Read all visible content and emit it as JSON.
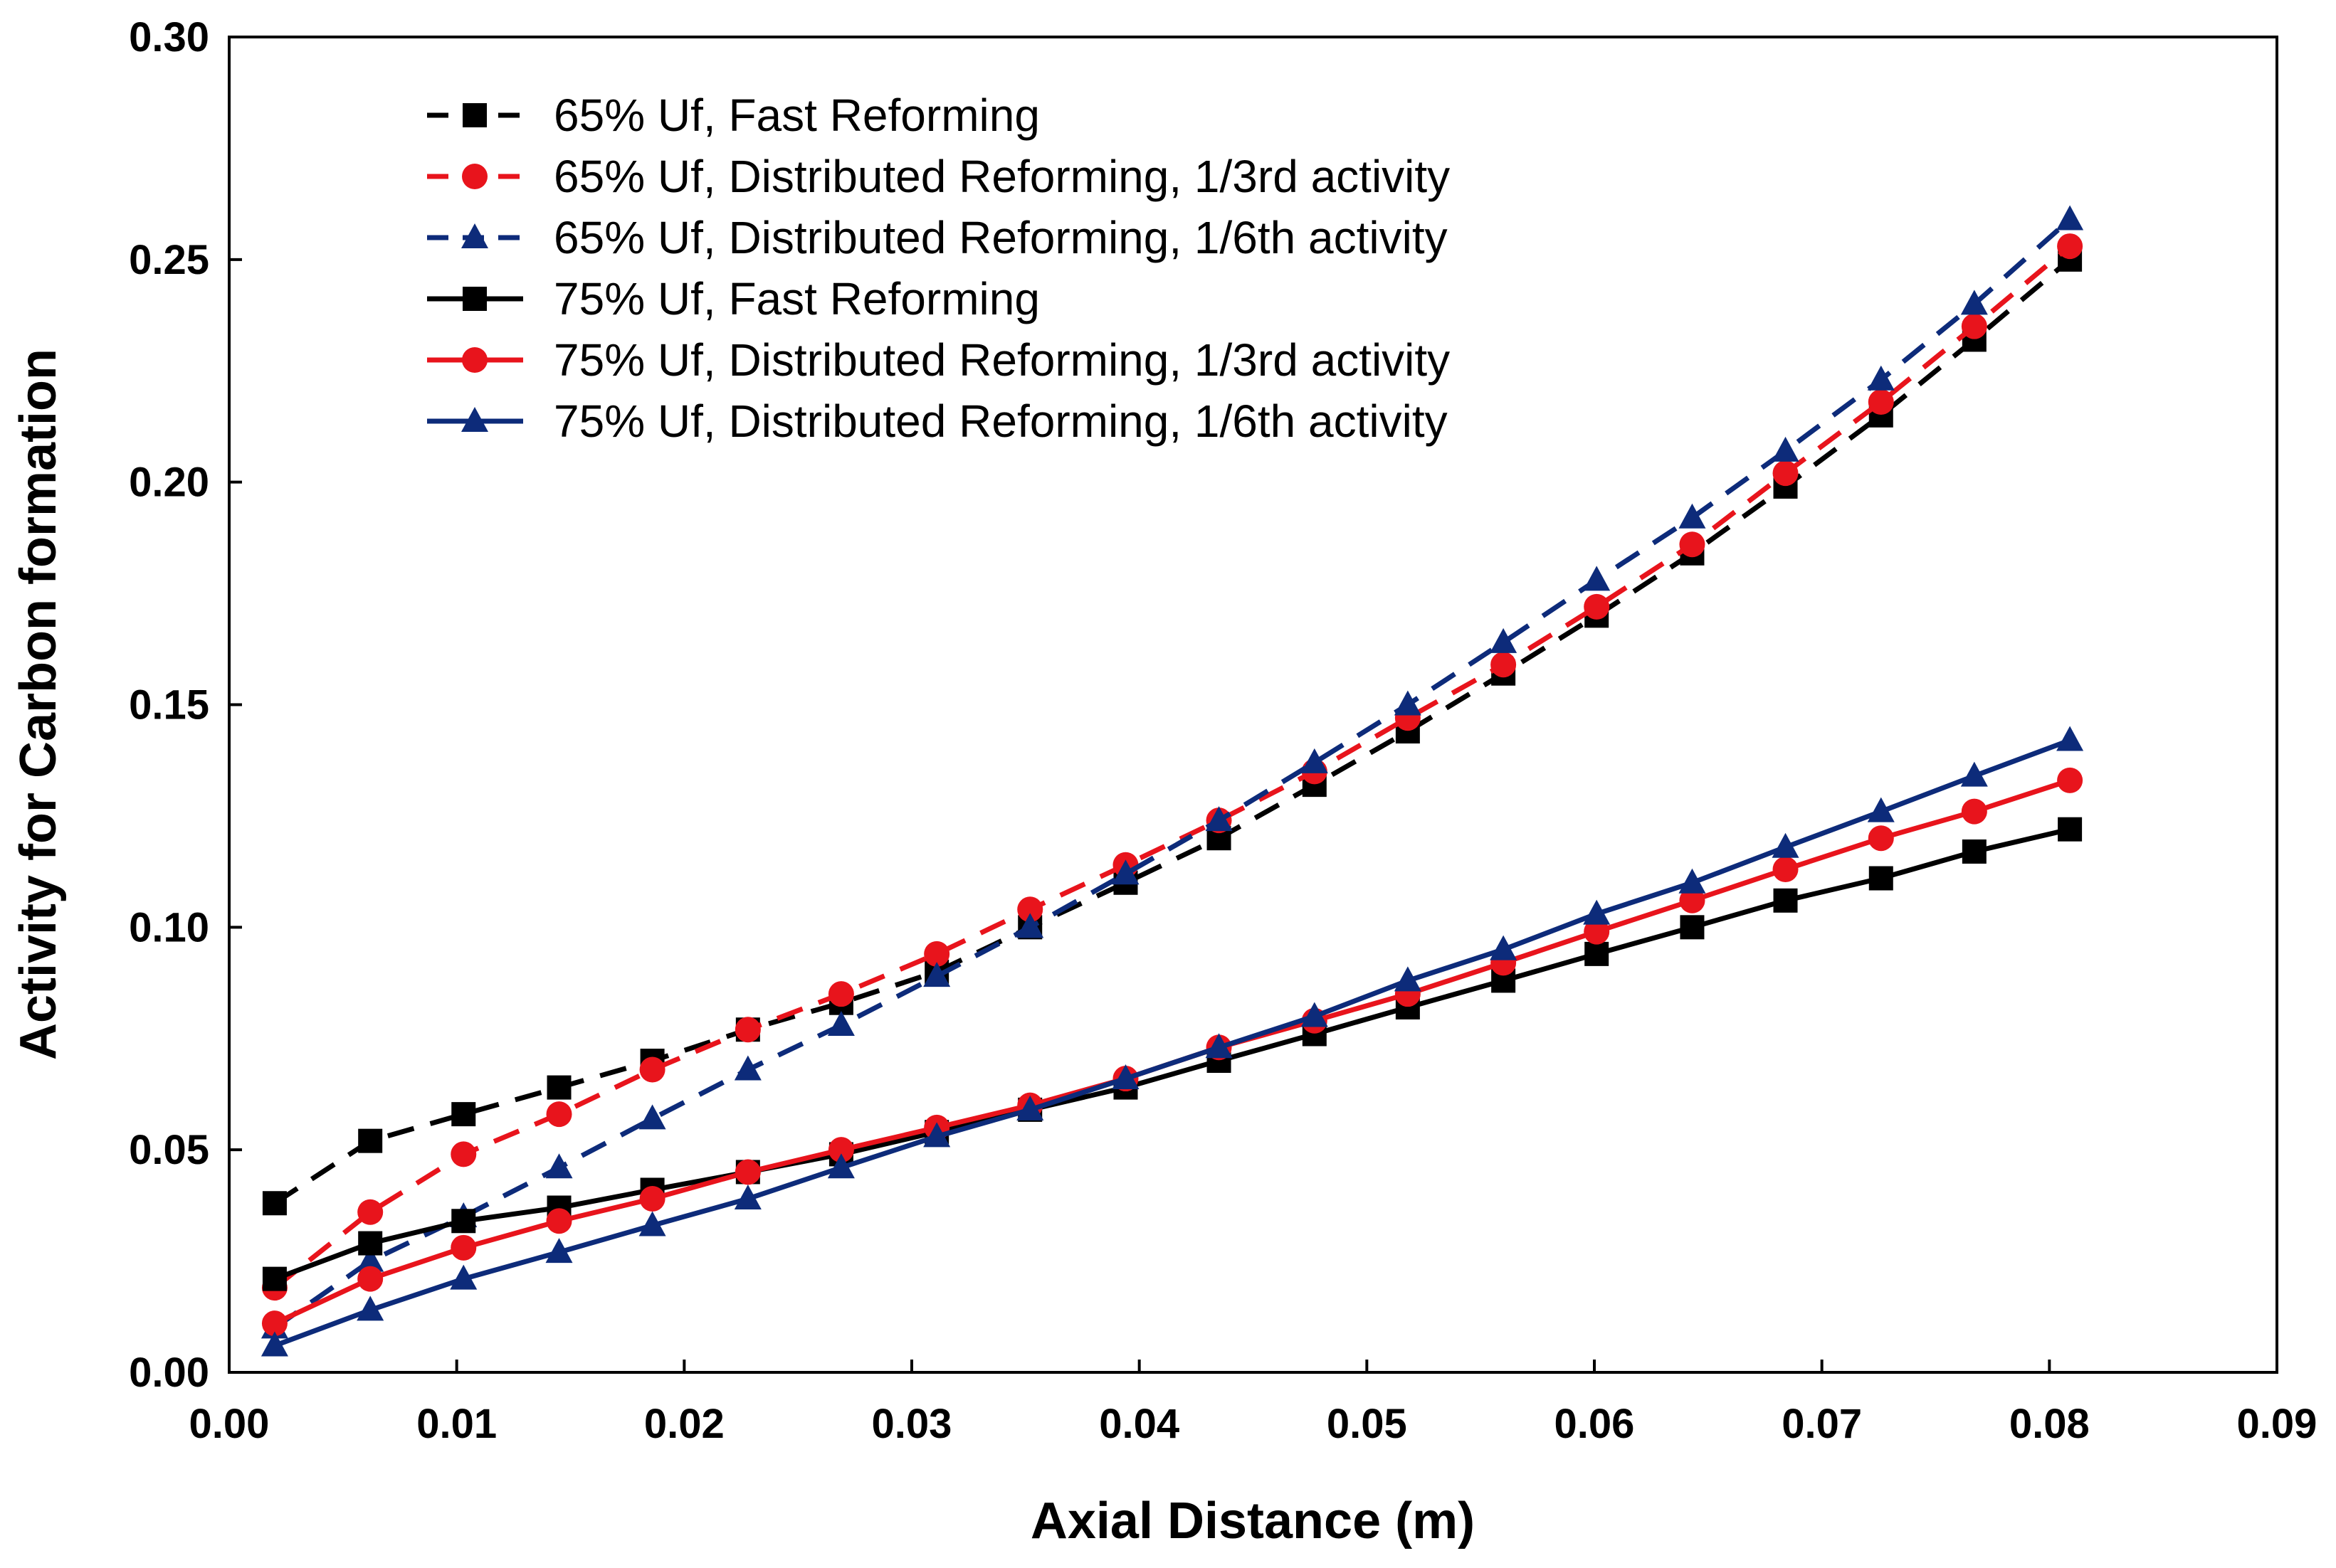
{
  "chart_data": {
    "type": "line",
    "title": "",
    "xlabel": "Axial Distance (m)",
    "ylabel": "Activity for Carbon formation",
    "xlim": [
      0,
      0.09
    ],
    "ylim": [
      0,
      0.3
    ],
    "grid": false,
    "legend_position": "top-left",
    "x_ticks": [
      "0.00",
      "0.01",
      "0.02",
      "0.03",
      "0.04",
      "0.05",
      "0.06",
      "0.07",
      "0.08",
      "0.09"
    ],
    "y_ticks": [
      "0.00",
      "0.05",
      "0.10",
      "0.15",
      "0.20",
      "0.25",
      "0.30"
    ],
    "x": [
      0.002,
      0.0062,
      0.0103,
      0.0145,
      0.0186,
      0.0228,
      0.0269,
      0.0311,
      0.0352,
      0.0394,
      0.0435,
      0.0477,
      0.0518,
      0.056,
      0.0601,
      0.0643,
      0.0684,
      0.0726,
      0.0767,
      0.0809
    ],
    "series": [
      {
        "name": "65% Uf, Fast Reforming",
        "color": "#000000",
        "line": "dashed",
        "marker": "square",
        "values": [
          0.038,
          0.052,
          0.058,
          0.064,
          0.07,
          0.077,
          0.083,
          0.09,
          0.1,
          0.11,
          0.12,
          0.132,
          0.144,
          0.157,
          0.17,
          0.184,
          0.199,
          0.215,
          0.232,
          0.25
        ]
      },
      {
        "name": "65% Uf, Distributed Reforming, 1/3rd activity",
        "color": "#e8141c",
        "line": "dashed",
        "marker": "circle",
        "values": [
          0.019,
          0.036,
          0.049,
          0.058,
          0.068,
          0.077,
          0.085,
          0.094,
          0.104,
          0.114,
          0.124,
          0.135,
          0.147,
          0.159,
          0.172,
          0.186,
          0.202,
          0.218,
          0.235,
          0.253
        ]
      },
      {
        "name": "65% Uf, Distributed Reforming, 1/6th activity",
        "color": "#0d2b7a",
        "line": "dashed",
        "marker": "triangle",
        "values": [
          0.01,
          0.025,
          0.035,
          0.046,
          0.057,
          0.068,
          0.078,
          0.089,
          0.1,
          0.112,
          0.124,
          0.137,
          0.15,
          0.164,
          0.178,
          0.192,
          0.207,
          0.223,
          0.24,
          0.259
        ]
      },
      {
        "name": "75% Uf, Fast Reforming",
        "color": "#000000",
        "line": "solid",
        "marker": "square",
        "values": [
          0.021,
          0.029,
          0.034,
          0.037,
          0.041,
          0.045,
          0.049,
          0.054,
          0.059,
          0.064,
          0.07,
          0.076,
          0.082,
          0.088,
          0.094,
          0.1,
          0.106,
          0.111,
          0.117,
          0.122
        ]
      },
      {
        "name": "75% Uf, Distributed Reforming, 1/3rd activity",
        "color": "#e8141c",
        "line": "solid",
        "marker": "circle",
        "values": [
          0.011,
          0.021,
          0.028,
          0.034,
          0.039,
          0.045,
          0.05,
          0.055,
          0.06,
          0.066,
          0.073,
          0.079,
          0.085,
          0.092,
          0.099,
          0.106,
          0.113,
          0.12,
          0.126,
          0.133
        ]
      },
      {
        "name": "75% Uf, Distributed Reforming, 1/6th activity",
        "color": "#0d2b7a",
        "line": "solid",
        "marker": "triangle",
        "values": [
          0.006,
          0.014,
          0.021,
          0.027,
          0.033,
          0.039,
          0.046,
          0.053,
          0.059,
          0.066,
          0.073,
          0.08,
          0.088,
          0.095,
          0.103,
          0.11,
          0.118,
          0.126,
          0.134,
          0.142
        ]
      }
    ]
  }
}
